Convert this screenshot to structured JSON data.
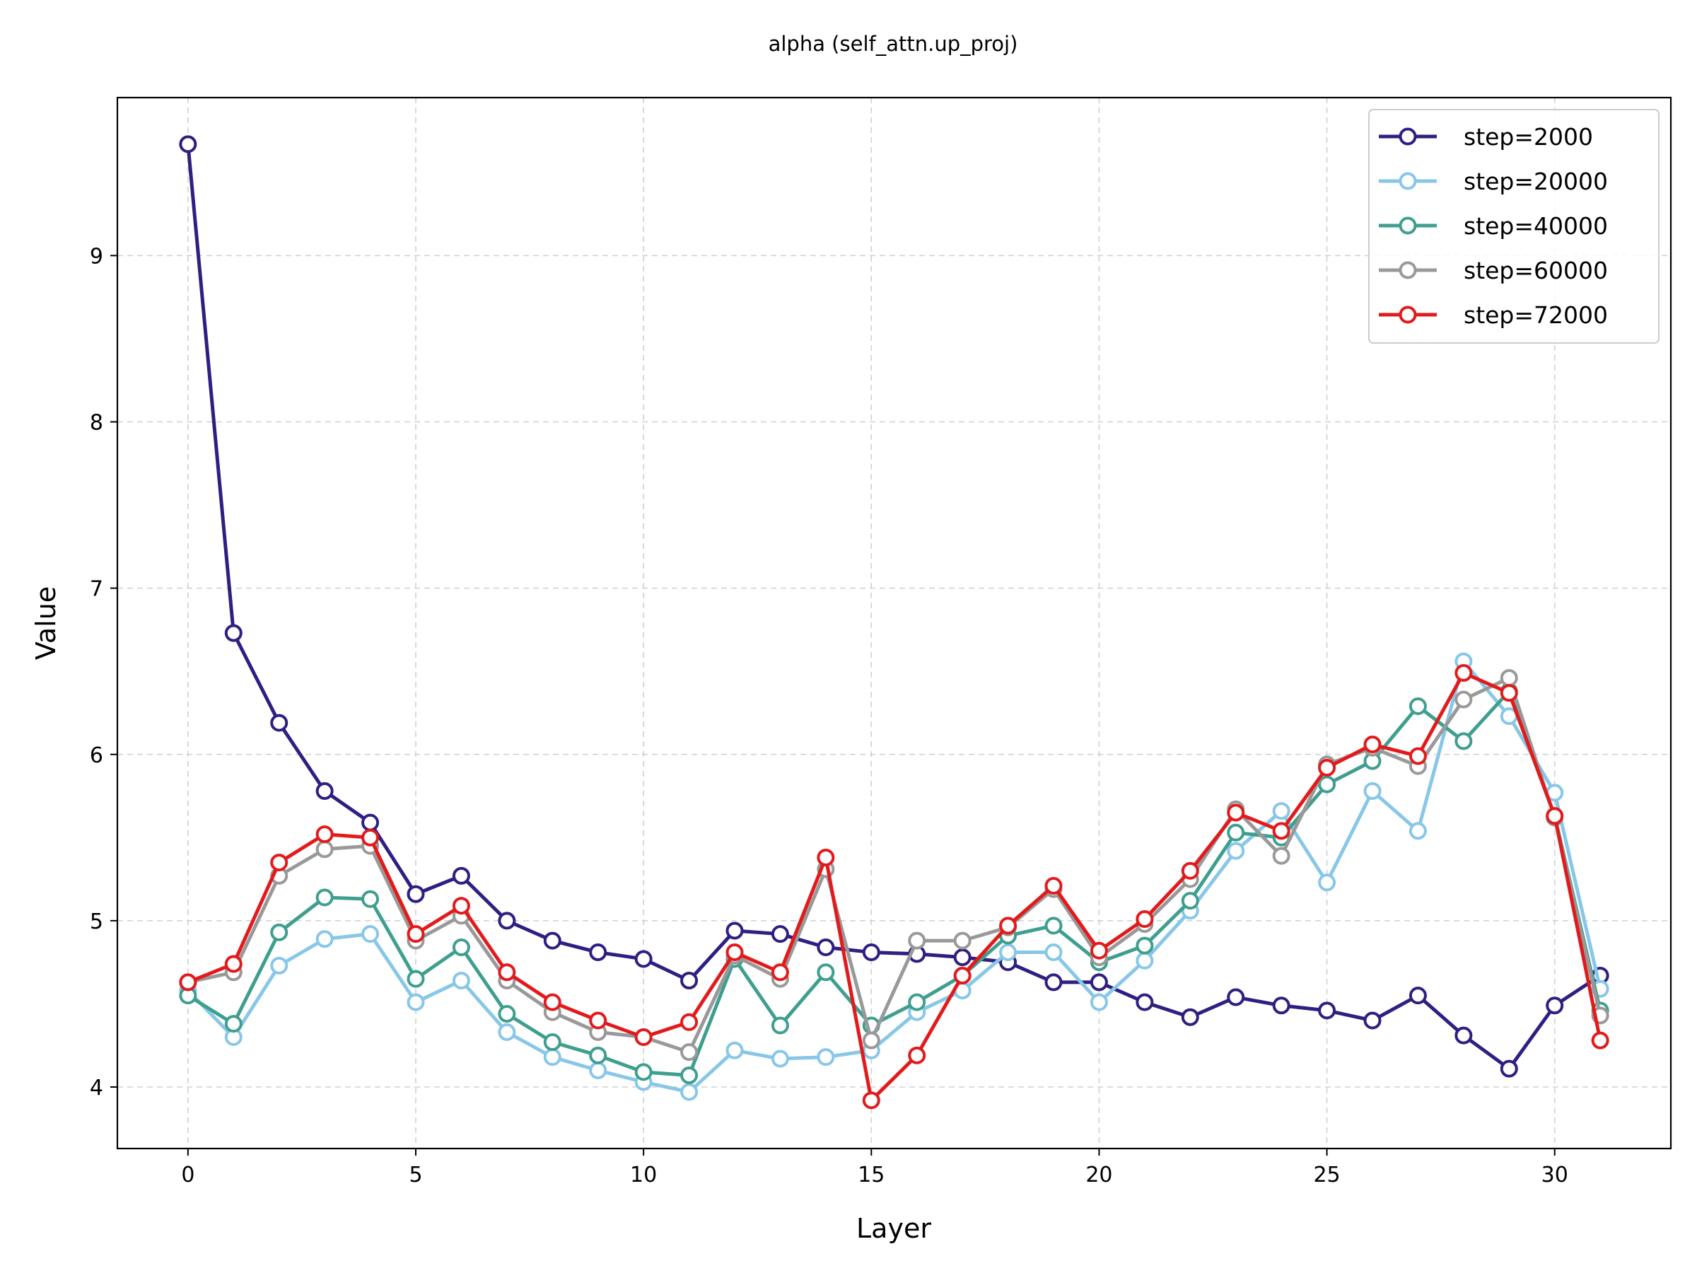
{
  "chart_data": {
    "type": "line",
    "title": "alpha (self_attn.up_proj)",
    "xlabel": "Layer",
    "ylabel": "Value",
    "xlim": [
      -1.55,
      32.55
    ],
    "ylim": [
      3.63,
      9.95
    ],
    "xticks": [
      0,
      5,
      10,
      15,
      20,
      25,
      30
    ],
    "yticks": [
      4,
      5,
      6,
      7,
      8,
      9
    ],
    "grid": true,
    "legend_position": "top-right",
    "x": [
      0,
      1,
      2,
      3,
      4,
      5,
      6,
      7,
      8,
      9,
      10,
      11,
      12,
      13,
      14,
      15,
      16,
      17,
      18,
      19,
      20,
      21,
      22,
      23,
      24,
      25,
      26,
      27,
      28,
      29,
      30,
      31
    ],
    "series": [
      {
        "name": "step=2000",
        "color": "#2e1f82",
        "values": [
          9.67,
          6.73,
          6.19,
          5.78,
          5.59,
          5.16,
          5.27,
          5.0,
          4.88,
          4.81,
          4.77,
          4.64,
          4.94,
          4.92,
          4.84,
          4.81,
          4.8,
          4.78,
          4.75,
          4.63,
          4.63,
          4.51,
          4.42,
          4.54,
          4.49,
          4.46,
          4.4,
          4.55,
          4.31,
          4.11,
          4.49,
          4.67
        ]
      },
      {
        "name": "step=20000",
        "color": "#88c7e8",
        "values": [
          4.58,
          4.3,
          4.73,
          4.89,
          4.92,
          4.51,
          4.64,
          4.33,
          4.18,
          4.1,
          4.03,
          3.97,
          4.22,
          4.17,
          4.18,
          4.22,
          4.45,
          4.58,
          4.81,
          4.81,
          4.51,
          4.76,
          5.06,
          5.42,
          5.66,
          5.23,
          5.78,
          5.54,
          6.56,
          6.23,
          5.77,
          4.59
        ]
      },
      {
        "name": "step=40000",
        "color": "#3f9f8f",
        "values": [
          4.55,
          4.38,
          4.93,
          5.14,
          5.13,
          4.65,
          4.84,
          4.44,
          4.27,
          4.19,
          4.09,
          4.07,
          4.77,
          4.37,
          4.69,
          4.37,
          4.51,
          4.67,
          4.91,
          4.97,
          4.75,
          4.85,
          5.12,
          5.53,
          5.5,
          5.82,
          5.96,
          6.29,
          6.08,
          6.38,
          5.63,
          4.46
        ]
      },
      {
        "name": "step=60000",
        "color": "#999999",
        "values": [
          4.63,
          4.69,
          5.27,
          5.43,
          5.45,
          4.88,
          5.03,
          4.64,
          4.45,
          4.33,
          4.3,
          4.21,
          4.79,
          4.65,
          5.31,
          4.28,
          4.88,
          4.88,
          4.96,
          5.19,
          4.78,
          4.98,
          5.25,
          5.67,
          5.39,
          5.94,
          6.04,
          5.93,
          6.33,
          6.46,
          5.62,
          4.43
        ]
      },
      {
        "name": "step=72000",
        "color": "#e31a1c",
        "values": [
          4.63,
          4.74,
          5.35,
          5.52,
          5.5,
          4.92,
          5.09,
          4.69,
          4.51,
          4.4,
          4.3,
          4.39,
          4.81,
          4.69,
          5.38,
          3.92,
          4.19,
          4.67,
          4.97,
          5.21,
          4.82,
          5.01,
          5.3,
          5.65,
          5.54,
          5.92,
          6.06,
          5.99,
          6.49,
          6.37,
          5.63,
          4.28
        ]
      }
    ]
  }
}
